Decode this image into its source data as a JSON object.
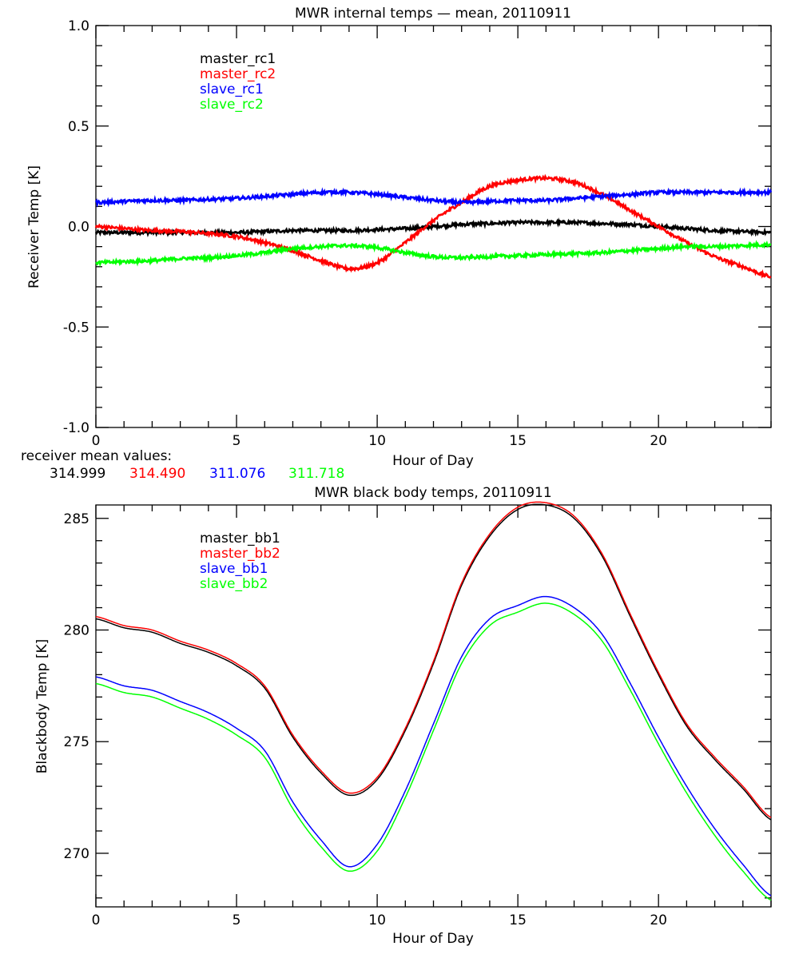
{
  "chart_data": [
    {
      "type": "line",
      "title": "MWR internal temps — mean, 20110911",
      "xlabel": "Hour of Day",
      "ylabel": "Receiver Temp [K]",
      "xlim": [
        0,
        24
      ],
      "ylim": [
        -1.0,
        1.0
      ],
      "xticks": [
        "0",
        "5",
        "10",
        "15",
        "20"
      ],
      "yticks": [
        "-1.0",
        "-0.5",
        "0.0",
        "0.5",
        "1.0"
      ],
      "legend_placement": "top-left",
      "x": [
        0,
        1,
        2,
        3,
        4,
        5,
        6,
        7,
        8,
        9,
        10,
        11,
        12,
        13,
        14,
        15,
        16,
        17,
        18,
        19,
        20,
        21,
        22,
        23,
        24
      ],
      "series": [
        {
          "name": "master_rc1",
          "color": "#000000",
          "values": [
            -0.03,
            -0.03,
            -0.03,
            -0.03,
            -0.03,
            -0.03,
            -0.025,
            -0.02,
            -0.02,
            -0.02,
            -0.015,
            -0.01,
            0.0,
            0.01,
            0.015,
            0.02,
            0.02,
            0.02,
            0.015,
            0.01,
            0.0,
            -0.01,
            -0.02,
            -0.025,
            -0.03
          ]
        },
        {
          "name": "master_rc2",
          "color": "#ff0000",
          "values": [
            0.0,
            -0.01,
            -0.02,
            -0.025,
            -0.035,
            -0.05,
            -0.08,
            -0.12,
            -0.17,
            -0.21,
            -0.18,
            -0.08,
            0.03,
            0.12,
            0.2,
            0.23,
            0.24,
            0.22,
            0.16,
            0.08,
            0.0,
            -0.08,
            -0.15,
            -0.2,
            -0.25
          ]
        },
        {
          "name": "slave_rc1",
          "color": "#0000ff",
          "values": [
            0.12,
            0.125,
            0.13,
            0.13,
            0.135,
            0.14,
            0.15,
            0.16,
            0.17,
            0.17,
            0.16,
            0.145,
            0.13,
            0.12,
            0.125,
            0.13,
            0.13,
            0.14,
            0.15,
            0.16,
            0.17,
            0.17,
            0.17,
            0.17,
            0.17
          ]
        },
        {
          "name": "slave_rc2",
          "color": "#00ff00",
          "values": [
            -0.18,
            -0.175,
            -0.17,
            -0.16,
            -0.155,
            -0.145,
            -0.13,
            -0.11,
            -0.1,
            -0.095,
            -0.105,
            -0.13,
            -0.15,
            -0.155,
            -0.15,
            -0.145,
            -0.14,
            -0.135,
            -0.13,
            -0.12,
            -0.11,
            -0.1,
            -0.1,
            -0.095,
            -0.09
          ]
        }
      ],
      "annotation_label": "receiver mean values:",
      "mean_values": [
        "314.999",
        "314.490",
        "311.076",
        "311.718"
      ]
    },
    {
      "type": "line",
      "title": "MWR black body temps, 20110911",
      "xlabel": "Hour of Day",
      "ylabel": "Blackbody Temp [K]",
      "xlim": [
        0,
        24
      ],
      "ylim": [
        267.6,
        285.6
      ],
      "xticks": [
        "0",
        "5",
        "10",
        "15",
        "20"
      ],
      "yticks": [
        "270",
        "275",
        "280",
        "285"
      ],
      "legend_placement": "top-left",
      "x": [
        0,
        1,
        2,
        3,
        4,
        5,
        6,
        7,
        8,
        9,
        10,
        11,
        12,
        13,
        14,
        15,
        16,
        17,
        18,
        19,
        20,
        21,
        22,
        23,
        24
      ],
      "series": [
        {
          "name": "master_bb1",
          "color": "#000000",
          "values": [
            280.5,
            280.1,
            279.9,
            279.4,
            279.0,
            278.4,
            277.4,
            275.2,
            273.6,
            272.6,
            273.3,
            275.5,
            278.5,
            282.0,
            284.2,
            285.4,
            285.6,
            285.0,
            283.3,
            280.6,
            278.0,
            275.7,
            274.2,
            272.9,
            271.5
          ]
        },
        {
          "name": "master_bb2",
          "color": "#ff0000",
          "values": [
            280.6,
            280.2,
            280.0,
            279.5,
            279.1,
            278.5,
            277.5,
            275.3,
            273.7,
            272.7,
            273.4,
            275.6,
            278.6,
            282.1,
            284.3,
            285.5,
            285.7,
            285.1,
            283.4,
            280.7,
            278.1,
            275.8,
            274.3,
            273.0,
            271.6
          ]
        },
        {
          "name": "slave_bb1",
          "color": "#0000ff",
          "values": [
            277.9,
            277.5,
            277.3,
            276.8,
            276.3,
            275.6,
            274.6,
            272.3,
            270.6,
            269.4,
            270.4,
            272.8,
            275.8,
            278.8,
            280.5,
            281.1,
            281.5,
            281.0,
            279.8,
            277.6,
            275.2,
            273.0,
            271.1,
            269.5,
            268.1
          ]
        },
        {
          "name": "slave_bb2",
          "color": "#00ff00",
          "values": [
            277.6,
            277.2,
            277.0,
            276.5,
            276.0,
            275.3,
            274.3,
            272.0,
            270.3,
            269.2,
            270.1,
            272.5,
            275.5,
            278.5,
            280.2,
            280.8,
            281.2,
            280.7,
            279.5,
            277.3,
            274.9,
            272.7,
            270.8,
            269.2,
            267.9
          ]
        }
      ]
    }
  ]
}
